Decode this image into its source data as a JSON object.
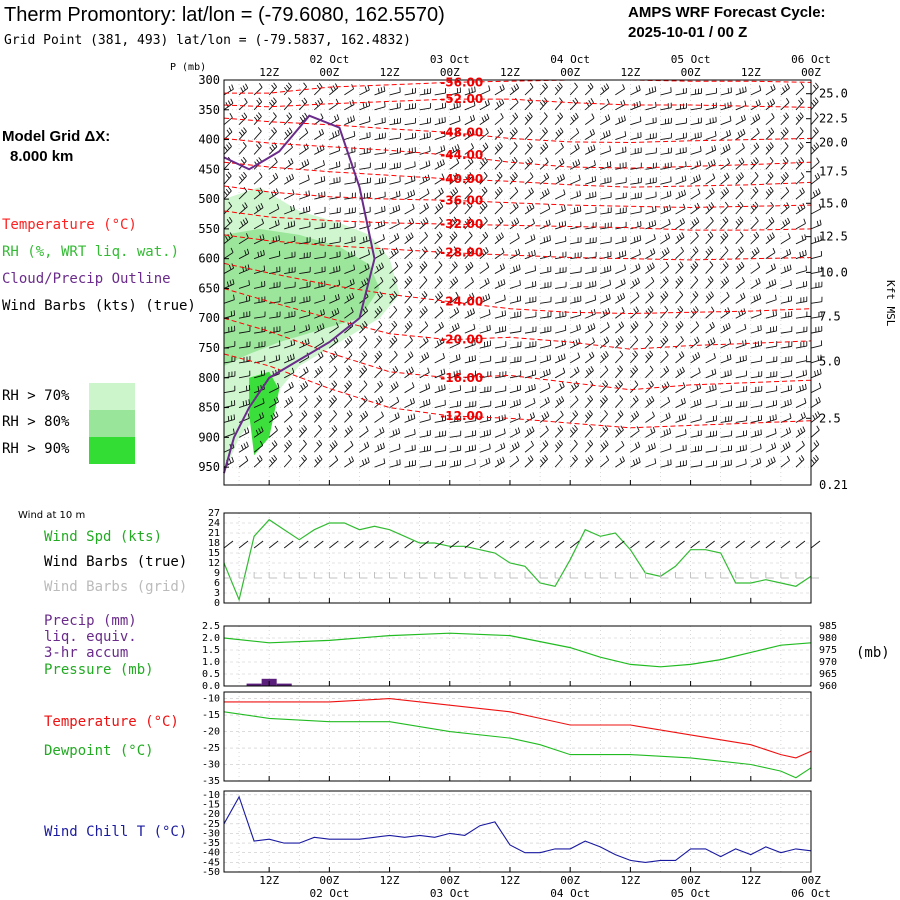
{
  "header": {
    "title": "Therm Promontory:  lat/lon = (-79.6080, 162.5570)",
    "grid_point": "Grid Point (381, 493) lat/lon = (-79.5837, 162.4832)",
    "cycle_line1": "AMPS WRF Forecast Cycle:",
    "cycle_line2": "2025-10-01 / 00  Z"
  },
  "side": {
    "grid_dx_label": "Model Grid ΔX:",
    "grid_dx_value": "8.000 km"
  },
  "legend_top": {
    "temperature": "Temperature (°C)",
    "rh": "RH (%, WRT liq. wat.)",
    "cloud": "Cloud/Precip Outline",
    "wind": "Wind Barbs (kts) (true)",
    "rh70": "RH > 70%",
    "rh80": "RH > 80%",
    "rh90": "RH > 90%"
  },
  "colors": {
    "temperature": "#ff0000",
    "rh": "#33bb33",
    "cloud": "#6a2b8a",
    "precip": "#5a1f7a",
    "grid_gray": "#9a9a9a",
    "dewpoint": "#22bb22",
    "pressure": "#22bb22",
    "windchill": "#1a1aa0",
    "rh70": "#ccf5cc",
    "rh80": "#99e599",
    "rh90": "#33dd33"
  },
  "time_axis": {
    "top_tick_labels": [
      "12Z",
      "00Z",
      "12Z",
      "00Z",
      "12Z",
      "00Z",
      "12Z",
      "00Z",
      "12Z",
      "00Z"
    ],
    "date_labels": [
      "02 Oct",
      "03 Oct",
      "04 Oct",
      "05 Oct",
      "06 Oct"
    ],
    "tick_hours": [
      12,
      24,
      36,
      48,
      60,
      72,
      84,
      96,
      108,
      120
    ],
    "date_hours": [
      24,
      48,
      72,
      96,
      120
    ],
    "range_hours": [
      3,
      120
    ]
  },
  "chart_data": [
    {
      "type": "line",
      "id": "cross_section",
      "ylabel": "P (mb)",
      "ylabel_right": "Kft MSL",
      "y_ticks": [
        "300",
        "350",
        "400",
        "450",
        "500",
        "550",
        "600",
        "650",
        "700",
        "750",
        "800",
        "850",
        "900",
        "950"
      ],
      "y_ticks_right": [
        "25.0",
        "22.5",
        "20.0",
        "17.5",
        "15.0",
        "12.5",
        "10.0",
        "7.5",
        "5.0",
        "2.5",
        "0.21"
      ],
      "y_ticks_right_p": [
        323,
        365,
        405,
        454,
        507,
        563,
        623,
        697,
        773,
        868,
        980
      ],
      "ylim": [
        300,
        980
      ],
      "temperature_contours": [
        {
          "label": "-56.00",
          "x": [
            3,
            12,
            24,
            36,
            48,
            60,
            72,
            84,
            96,
            108,
            120
          ],
          "p": [
            322,
            322,
            312,
            308,
            304,
            302,
            300,
            300,
            302,
            302,
            304
          ]
        },
        {
          "label": "-52.00",
          "x": [
            3,
            12,
            24,
            36,
            48,
            60,
            72,
            84,
            96,
            108,
            120
          ],
          "p": [
            342,
            345,
            340,
            336,
            332,
            332,
            338,
            342,
            342,
            344,
            346
          ]
        },
        {
          "label": "-48.00",
          "x": [
            3,
            12,
            24,
            36,
            48,
            60,
            72,
            84,
            96,
            108,
            120
          ],
          "p": [
            364,
            370,
            375,
            382,
            388,
            398,
            404,
            405,
            402,
            400,
            398
          ]
        },
        {
          "label": "-44.00",
          "x": [
            3,
            12,
            24,
            36,
            48,
            60,
            72,
            84,
            96,
            108,
            120
          ],
          "p": [
            398,
            406,
            412,
            418,
            426,
            438,
            446,
            448,
            445,
            442,
            438
          ]
        },
        {
          "label": "-40.00",
          "x": [
            3,
            12,
            24,
            36,
            48,
            60,
            72,
            84,
            96,
            108,
            120
          ],
          "p": [
            438,
            446,
            454,
            460,
            466,
            470,
            476,
            480,
            478,
            476,
            472
          ]
        },
        {
          "label": "-36.00",
          "x": [
            3,
            12,
            24,
            36,
            48,
            60,
            72,
            84,
            96,
            108,
            120
          ],
          "p": [
            478,
            488,
            496,
            500,
            502,
            506,
            510,
            512,
            514,
            512,
            510
          ]
        },
        {
          "label": "-32.00",
          "x": [
            3,
            12,
            24,
            36,
            48,
            60,
            72,
            84,
            96,
            108,
            120
          ],
          "p": [
            520,
            530,
            536,
            540,
            542,
            544,
            546,
            548,
            552,
            552,
            550
          ]
        },
        {
          "label": "-28.00",
          "x": [
            3,
            12,
            24,
            36,
            48,
            60,
            72,
            84,
            96,
            108,
            120
          ],
          "p": [
            560,
            570,
            578,
            584,
            590,
            594,
            598,
            600,
            602,
            600,
            598
          ]
        },
        {
          "label": "-24.00",
          "x": [
            3,
            12,
            24,
            36,
            48,
            60,
            72,
            84,
            96,
            108,
            120
          ],
          "p": [
            608,
            624,
            644,
            660,
            672,
            684,
            690,
            692,
            690,
            688,
            684
          ]
        },
        {
          "label": "-20.00",
          "x": [
            3,
            12,
            24,
            36,
            48,
            60,
            72,
            84,
            96,
            108,
            120
          ],
          "p": [
            650,
            672,
            700,
            726,
            736,
            732,
            740,
            752,
            746,
            742,
            738
          ]
        },
        {
          "label": "-16.00",
          "x": [
            3,
            12,
            24,
            36,
            48,
            60,
            72,
            84,
            96,
            108,
            120
          ],
          "p": [
            700,
            722,
            758,
            790,
            800,
            796,
            808,
            820,
            812,
            808,
            804
          ]
        },
        {
          "label": "-12.00",
          "x": [
            3,
            12,
            24,
            36,
            48,
            60,
            72,
            84,
            96,
            108,
            120
          ],
          "p": [
            760,
            780,
            818,
            850,
            864,
            868,
            876,
            884,
            880,
            876,
            872
          ]
        }
      ],
      "cloud_outline": {
        "x": [
          3,
          8,
          14,
          20,
          26,
          30,
          33,
          30,
          24,
          18,
          12,
          8,
          5,
          3
        ],
        "p": [
          430,
          450,
          420,
          360,
          380,
          480,
          600,
          700,
          740,
          770,
          800,
          850,
          900,
          960
        ]
      },
      "rh_regions": [
        {
          "level": "rh70",
          "x": [
            3,
            10,
            18,
            26,
            32,
            36,
            38,
            34,
            26,
            18,
            12,
            6,
            3
          ],
          "p": [
            500,
            480,
            520,
            540,
            560,
            600,
            660,
            700,
            740,
            780,
            840,
            900,
            960
          ]
        },
        {
          "level": "rh80",
          "x": [
            3,
            10,
            18,
            26,
            32,
            34,
            30,
            22,
            14,
            8,
            3
          ],
          "p": [
            560,
            550,
            560,
            580,
            610,
            650,
            700,
            720,
            740,
            760,
            780
          ]
        },
        {
          "level": "rh90",
          "x": [
            8,
            12,
            14,
            12,
            9,
            8
          ],
          "p": [
            800,
            790,
            820,
            900,
            930,
            860
          ]
        }
      ]
    },
    {
      "type": "line",
      "id": "wind_10m",
      "title": "Wind at 10 m",
      "series": [
        {
          "name": "Wind Spd (kts)",
          "x": [
            3,
            6,
            9,
            12,
            15,
            18,
            21,
            24,
            27,
            30,
            33,
            36,
            39,
            42,
            45,
            48,
            51,
            54,
            57,
            60,
            63,
            66,
            69,
            72,
            75,
            78,
            81,
            84,
            87,
            90,
            93,
            96,
            99,
            102,
            105,
            108,
            111,
            114,
            117,
            120
          ],
          "values": [
            12,
            1,
            20,
            25,
            22,
            19,
            22,
            24,
            24,
            22,
            23,
            22,
            20,
            18,
            18,
            17,
            17,
            16,
            15,
            12,
            11,
            6,
            5,
            13,
            22,
            20,
            21,
            16,
            9,
            8,
            11,
            16,
            16,
            15,
            6,
            6,
            7,
            6,
            5,
            8
          ]
        }
      ],
      "legend": [
        "Wind Spd (kts)",
        "Wind Barbs (true)",
        "Wind Barbs (grid)"
      ],
      "y_ticks": [
        0,
        3,
        6,
        9,
        12,
        15,
        18,
        21,
        24,
        27
      ],
      "ylim": [
        0,
        27
      ]
    },
    {
      "type": "line",
      "id": "precip_pressure",
      "series": [
        {
          "name": "Pressure (mb)",
          "x": [
            3,
            12,
            24,
            36,
            48,
            60,
            72,
            78,
            84,
            90,
            96,
            102,
            108,
            114,
            120
          ],
          "values": [
            980,
            978,
            979,
            981,
            982,
            981,
            976,
            972,
            969,
            968,
            969,
            971,
            974,
            977,
            978
          ]
        },
        {
          "name": "Precip (mm)",
          "x": [
            9,
            12,
            15
          ],
          "values": [
            0.1,
            0.3,
            0.1
          ]
        }
      ],
      "legend": [
        "Precip (mm)",
        "liq. equiv.",
        "3-hr accum",
        "Pressure (mb)"
      ],
      "y_ticks": [
        "0.0",
        "0.5",
        "1.0",
        "1.5",
        "2.0",
        "2.5"
      ],
      "y_ticks_right": [
        "960",
        "965",
        "970",
        "975",
        "980",
        "985"
      ],
      "ylabel_right": "(mb)",
      "ylim": [
        0,
        2.5
      ],
      "ylim_right": [
        960,
        985
      ]
    },
    {
      "type": "line",
      "id": "temperature_dewpoint",
      "series": [
        {
          "name": "Temperature (°C)",
          "x": [
            3,
            12,
            24,
            36,
            48,
            60,
            66,
            72,
            84,
            96,
            108,
            114,
            117,
            120
          ],
          "values": [
            -11,
            -11,
            -11,
            -10,
            -12,
            -14,
            -16,
            -18,
            -18,
            -21,
            -24,
            -27,
            -28,
            -26
          ]
        },
        {
          "name": "Dewpoint (°C)",
          "x": [
            3,
            12,
            24,
            36,
            48,
            60,
            66,
            72,
            84,
            96,
            108,
            114,
            117,
            120
          ],
          "values": [
            -14,
            -16,
            -17,
            -17,
            -20,
            -22,
            -24,
            -27,
            -27,
            -28,
            -30,
            -32,
            -34,
            -31
          ]
        }
      ],
      "y_ticks": [
        -10,
        -15,
        -20,
        -25,
        -30,
        -35
      ],
      "ylim": [
        -35,
        -8
      ]
    },
    {
      "type": "line",
      "id": "wind_chill",
      "series": [
        {
          "name": "Wind Chill T (°C)",
          "x": [
            3,
            6,
            9,
            12,
            15,
            18,
            21,
            24,
            27,
            30,
            33,
            36,
            39,
            42,
            45,
            48,
            51,
            54,
            57,
            60,
            63,
            66,
            69,
            72,
            75,
            78,
            81,
            84,
            87,
            90,
            93,
            96,
            99,
            102,
            105,
            108,
            111,
            114,
            117,
            120
          ],
          "values": [
            -25,
            -11,
            -34,
            -33,
            -35,
            -35,
            -32,
            -33,
            -33,
            -33,
            -32,
            -31,
            -32,
            -31,
            -32,
            -30,
            -31,
            -26,
            -24,
            -36,
            -40,
            -40,
            -38,
            -38,
            -34,
            -37,
            -41,
            -44,
            -45,
            -44,
            -44,
            -38,
            -38,
            -42,
            -38,
            -41,
            -37,
            -40,
            -38,
            -39
          ]
        }
      ],
      "y_ticks": [
        -10,
        -15,
        -20,
        -25,
        -30,
        -35,
        -40,
        -45,
        -50
      ],
      "ylim": [
        -50,
        -8
      ]
    }
  ]
}
